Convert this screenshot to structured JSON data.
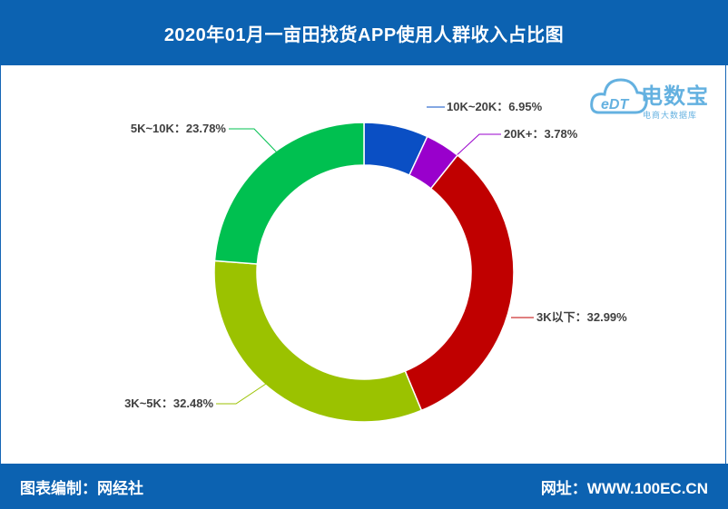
{
  "header": {
    "title": "2020年01月一亩田找货APP使用人群收入占比图"
  },
  "footer": {
    "left": "图表编制：网经社",
    "right": "网址：WWW.100EC.CN"
  },
  "watermark": {
    "brand": "电数宝",
    "sub": "电商大数据库",
    "logo_text": "eDT"
  },
  "chart_data": {
    "type": "pie",
    "donut": true,
    "title": "2020年01月一亩田找货APP使用人群收入占比图",
    "slices": [
      {
        "label": "10K~20K",
        "value": 6.95,
        "display": "10K~20K：6.95%",
        "color": "#0a4fc4"
      },
      {
        "label": "20K+",
        "value": 3.78,
        "display": "20K+：3.78%",
        "color": "#9900cc"
      },
      {
        "label": "3K以下",
        "value": 32.99,
        "display": "3K以下：32.99%",
        "color": "#c00000"
      },
      {
        "label": "3K~5K",
        "value": 32.48,
        "display": "3K~5K：32.48%",
        "color": "#9bc200"
      },
      {
        "label": "5K~10K",
        "value": 23.78,
        "display": "5K~10K：23.78%",
        "color": "#00c050"
      }
    ]
  }
}
